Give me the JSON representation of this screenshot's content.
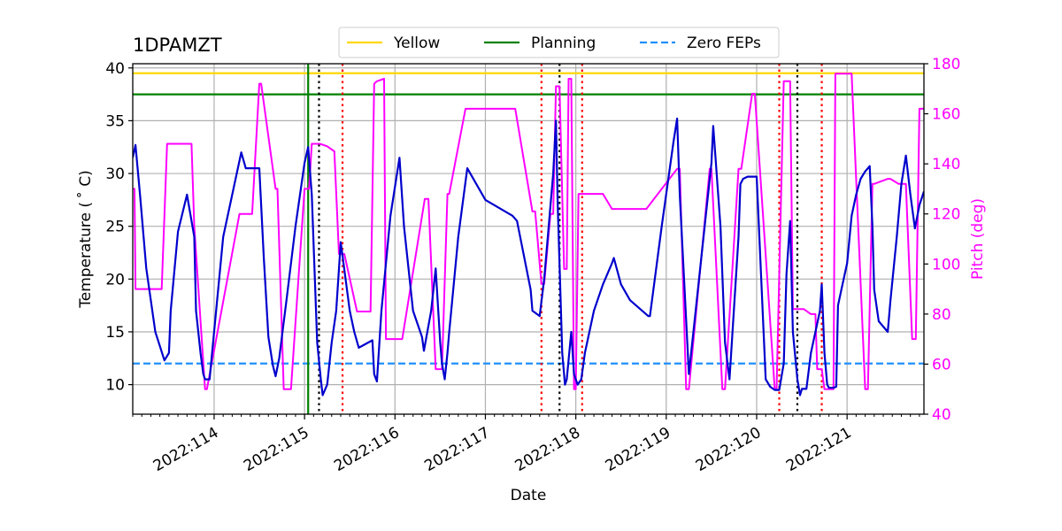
{
  "chart_data": {
    "type": "line",
    "title": "1DPAMZT",
    "xlabel": "Date",
    "ylabel": "Temperature ($^\\circ$C)",
    "ylabel_display": "Temperature ( ˚ C)",
    "y2label": "Pitch (deg)",
    "xlim": [
      113.1,
      121.85
    ],
    "ylim": [
      7.2,
      40.4
    ],
    "y2lim": [
      40,
      180
    ],
    "x_ticks": [
      114,
      115,
      116,
      117,
      118,
      119,
      120,
      121
    ],
    "x_tick_labels": [
      "2022:114",
      "2022:115",
      "2022:116",
      "2022:117",
      "2022:118",
      "2022:119",
      "2022:120",
      "2022:121"
    ],
    "y_ticks": [
      10,
      15,
      20,
      25,
      30,
      35,
      40
    ],
    "y_tick_labels": [
      "10",
      "15",
      "20",
      "25",
      "30",
      "35",
      "40"
    ],
    "y2_ticks": [
      40,
      60,
      80,
      100,
      120,
      140,
      160,
      180
    ],
    "y2_tick_labels": [
      "40",
      "60",
      "80",
      "100",
      "120",
      "140",
      "160",
      "180"
    ],
    "grid": true,
    "legend": {
      "placement": "top-center",
      "entries": [
        {
          "label": "Yellow",
          "color": "#FFD700",
          "style": "solid"
        },
        {
          "label": "Planning",
          "color": "#008000",
          "style": "solid"
        },
        {
          "label": "Zero FEPs",
          "color": "#1E90FF",
          "style": "dashed"
        }
      ]
    },
    "hlines": [
      {
        "name": "Yellow",
        "y": 39.5,
        "color": "#FFD700",
        "style": "solid"
      },
      {
        "name": "Planning",
        "y": 37.5,
        "color": "#008000",
        "style": "solid"
      },
      {
        "name": "Zero FEPs",
        "y": 12.0,
        "color": "#1E90FF",
        "style": "dashed"
      }
    ],
    "vlines": [
      {
        "name": "now",
        "x": 115.04,
        "color": "#008000",
        "style": "solid"
      },
      {
        "name": "comm-black",
        "x": 115.16,
        "color": "#000000",
        "style": "dotted"
      },
      {
        "name": "comm-red",
        "x": 115.42,
        "color": "#FF0000",
        "style": "dotted"
      },
      {
        "name": "comm-red",
        "x": 117.62,
        "color": "#FF0000",
        "style": "dotted"
      },
      {
        "name": "comm-black",
        "x": 117.82,
        "color": "#000000",
        "style": "dotted"
      },
      {
        "name": "comm-red",
        "x": 118.07,
        "color": "#FF0000",
        "style": "dotted"
      },
      {
        "name": "comm-red",
        "x": 120.25,
        "color": "#FF0000",
        "style": "dotted"
      },
      {
        "name": "comm-black",
        "x": 120.45,
        "color": "#000000",
        "style": "dotted"
      },
      {
        "name": "comm-red",
        "x": 120.72,
        "color": "#FF0000",
        "style": "dotted"
      }
    ],
    "series": [
      {
        "name": "1DPAMZT temperature",
        "axis": "left",
        "color": "#0000CD",
        "x": [
          113.1,
          113.13,
          113.18,
          113.25,
          113.35,
          113.45,
          113.5,
          113.52,
          113.6,
          113.7,
          113.78,
          113.8,
          113.85,
          113.88,
          113.9,
          113.95,
          114.1,
          114.3,
          114.35,
          114.45,
          114.5,
          114.55,
          114.6,
          114.65,
          114.68,
          114.72,
          114.8,
          114.9,
          115.0,
          115.04,
          115.08,
          115.14,
          115.18,
          115.2,
          115.25,
          115.3,
          115.35,
          115.4,
          115.5,
          115.55,
          115.6,
          115.75,
          115.77,
          115.8,
          115.85,
          115.95,
          116.05,
          116.1,
          116.2,
          116.3,
          116.32,
          116.4,
          116.45,
          116.5,
          116.52,
          116.55,
          116.58,
          116.6,
          116.7,
          116.8,
          117.0,
          117.3,
          117.35,
          117.5,
          117.52,
          117.6,
          117.65,
          117.75,
          117.78,
          117.8,
          117.85,
          117.88,
          117.9,
          117.95,
          117.98,
          118.0,
          118.02,
          118.06,
          118.1,
          118.2,
          118.3,
          118.4,
          118.42,
          118.5,
          118.6,
          118.8,
          118.82,
          118.95,
          119.08,
          119.12,
          119.15,
          119.25,
          119.5,
          119.52,
          119.6,
          119.65,
          119.7,
          119.8,
          119.82,
          119.85,
          119.9,
          120.0,
          120.1,
          120.15,
          120.2,
          120.25,
          120.3,
          120.33,
          120.37,
          120.4,
          120.45,
          120.48,
          120.5,
          120.55,
          120.6,
          120.65,
          120.7,
          120.72,
          120.75,
          120.78,
          120.8,
          120.85,
          120.88,
          120.9,
          120.95,
          121.0,
          121.05,
          121.1,
          121.15,
          121.2,
          121.25,
          121.28,
          121.3,
          121.35,
          121.45,
          121.48,
          121.55,
          121.6,
          121.65,
          121.7,
          121.75,
          121.8,
          121.85
        ],
        "values": [
          31.5,
          32.7,
          28.0,
          21.0,
          15.0,
          12.3,
          13.0,
          17.0,
          24.5,
          28.0,
          24.0,
          17.0,
          13.0,
          11.0,
          10.5,
          10.5,
          24.0,
          32.0,
          30.5,
          30.5,
          30.5,
          22.0,
          14.5,
          11.8,
          10.8,
          12.5,
          18.0,
          25.0,
          31.0,
          32.5,
          28.0,
          14.0,
          10.5,
          9.0,
          10.0,
          14.0,
          17.0,
          23.5,
          17.0,
          15.0,
          13.5,
          14.2,
          11.0,
          10.3,
          17.0,
          26.0,
          31.5,
          25.0,
          17.0,
          14.5,
          13.2,
          17.0,
          21.0,
          14.0,
          12.0,
          10.5,
          13.0,
          15.0,
          24.0,
          30.5,
          27.5,
          26.0,
          25.5,
          19.0,
          17.0,
          16.5,
          20.0,
          30.0,
          35.0,
          27.0,
          13.0,
          10.0,
          10.5,
          15.0,
          11.0,
          10.5,
          10.0,
          10.5,
          13.0,
          17.0,
          19.5,
          21.5,
          22.0,
          19.5,
          18.0,
          16.5,
          16.5,
          25.0,
          33.0,
          35.2,
          28.0,
          11.0,
          31.0,
          34.5,
          25.0,
          14.0,
          10.5,
          24.0,
          29.0,
          29.5,
          29.7,
          29.7,
          10.5,
          9.8,
          9.5,
          9.5,
          12.0,
          20.5,
          25.5,
          15.0,
          10.5,
          9.0,
          9.6,
          9.6,
          13.0,
          15.0,
          17.0,
          19.5,
          13.0,
          10.0,
          9.7,
          9.7,
          9.8,
          17.5,
          19.5,
          21.5,
          26.0,
          28.0,
          29.5,
          30.2,
          30.7,
          25.0,
          19.0,
          16.0,
          15.0,
          18.0,
          24.0,
          29.0,
          31.7,
          28.0,
          24.8,
          27.0,
          28.3
        ]
      },
      {
        "name": "Pitch",
        "axis": "right",
        "color": "#FF00FF",
        "step": true,
        "x": [
          113.1,
          113.12,
          113.13,
          113.42,
          113.48,
          113.75,
          113.78,
          113.9,
          113.92,
          114.28,
          114.42,
          114.5,
          114.52,
          114.68,
          114.7,
          114.77,
          114.85,
          115.0,
          115.05,
          115.08,
          115.17,
          115.25,
          115.33,
          115.38,
          115.44,
          115.58,
          115.73,
          115.77,
          115.8,
          115.88,
          115.9,
          116.08,
          116.33,
          116.37,
          116.45,
          116.52,
          116.58,
          116.6,
          116.78,
          117.33,
          117.52,
          117.55,
          117.62,
          117.65,
          117.72,
          117.75,
          117.78,
          117.82,
          117.87,
          117.9,
          117.92,
          117.95,
          117.98,
          118.0,
          118.03,
          118.05,
          118.3,
          118.4,
          118.78,
          119.12,
          119.15,
          119.22,
          119.25,
          119.48,
          119.5,
          119.62,
          119.65,
          119.8,
          119.83,
          119.95,
          119.98,
          120.2,
          120.22,
          120.3,
          120.37,
          120.4,
          120.52,
          120.6,
          120.65,
          120.67,
          120.72,
          120.75,
          120.85,
          120.87,
          121.05,
          121.2,
          121.23,
          121.28,
          121.3,
          121.45,
          121.48,
          121.57,
          121.65,
          121.72,
          121.76,
          121.8,
          121.85
        ],
        "values": [
          130,
          130,
          90,
          90,
          148,
          148,
          115,
          50,
          50,
          120,
          120,
          172,
          172,
          130,
          130,
          50,
          50,
          130,
          130,
          148,
          148,
          147,
          145,
          104,
          104,
          81,
          81,
          172,
          173,
          174,
          70,
          70,
          126,
          126,
          58,
          58,
          128,
          128,
          162,
          162,
          121,
          121,
          92,
          92,
          120,
          120,
          171,
          171,
          98,
          98,
          174,
          174,
          50,
          50,
          128,
          128,
          128,
          122,
          122,
          138,
          138,
          50,
          50,
          138,
          138,
          50,
          50,
          138,
          138,
          168,
          168,
          50,
          50,
          173,
          173,
          82,
          82,
          80,
          80,
          58,
          58,
          50,
          50,
          176,
          176,
          50,
          50,
          132,
          132,
          134,
          134,
          132,
          132,
          70,
          70,
          162,
          162
        ]
      }
    ]
  }
}
